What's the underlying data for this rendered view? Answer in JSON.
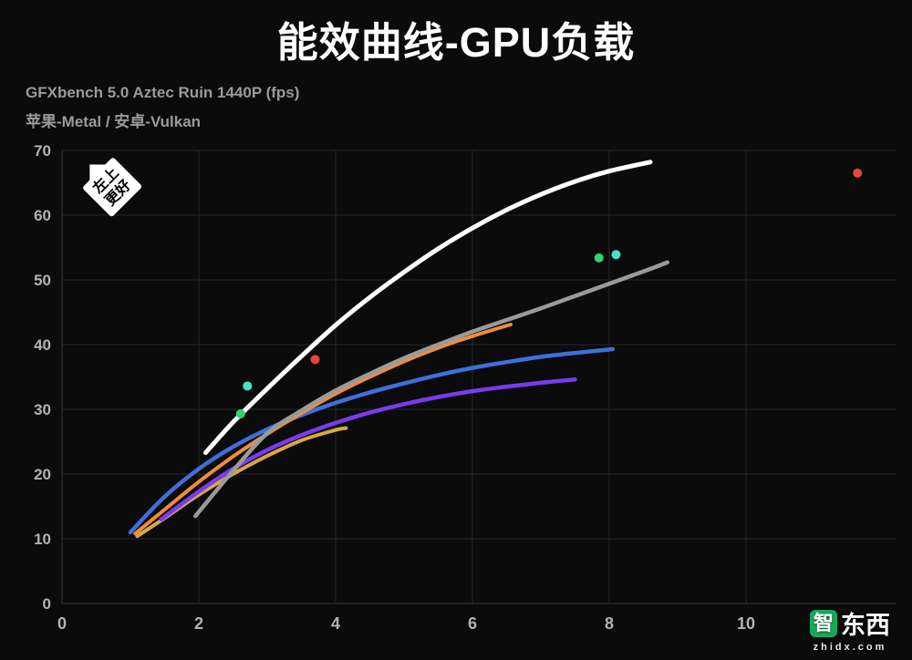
{
  "page": {
    "title": "能效曲线-GPU负载",
    "subtitle1": "GFXbench 5.0 Aztec Ruin 1440P (fps)",
    "subtitle2": "苹果-Metal / 安卓-Vulkan"
  },
  "annotation": {
    "line1": "左上",
    "line2": "更好"
  },
  "watermark": {
    "logo_char": "智",
    "logo_rest": "东西",
    "domain": "zhidx.com"
  },
  "chart_data": {
    "type": "line",
    "title": "能效曲线-GPU负载",
    "subtitle": "GFXbench 5.0 Aztec Ruin 1440P (fps) 苹果-Metal / 安卓-Vulkan",
    "xlim": [
      0,
      12.2
    ],
    "ylim": [
      0,
      70
    ],
    "x_ticks": [
      0,
      2,
      4,
      6,
      8,
      10
    ],
    "y_ticks": [
      0,
      10,
      20,
      30,
      40,
      50,
      60,
      70
    ],
    "grid": true,
    "legend": "none",
    "colors": {
      "background": "#0b0b0b",
      "grid": "#272727",
      "axis": "#3a3a3a",
      "tick_label": "#b3b3b3"
    },
    "series": [
      {
        "name": "yellow-curve",
        "color": "#d9a93c",
        "width": 4,
        "points": [
          [
            1.1,
            10.4
          ],
          [
            1.5,
            13.2
          ],
          [
            2,
            16.8
          ],
          [
            2.5,
            20.0
          ],
          [
            3,
            22.8
          ],
          [
            3.5,
            25.2
          ],
          [
            4,
            26.8
          ],
          [
            4.15,
            27.1
          ]
        ]
      },
      {
        "name": "purple-curve",
        "color": "#7a3bee",
        "width": 4.5,
        "points": [
          [
            1.45,
            13.0
          ],
          [
            2,
            17.3
          ],
          [
            2.5,
            20.8
          ],
          [
            3,
            23.7
          ],
          [
            3.5,
            26.0
          ],
          [
            4,
            27.9
          ],
          [
            4.5,
            29.5
          ],
          [
            5,
            30.8
          ],
          [
            5.5,
            31.9
          ],
          [
            6,
            32.8
          ],
          [
            6.5,
            33.5
          ],
          [
            7,
            34.1
          ],
          [
            7.5,
            34.6
          ]
        ]
      },
      {
        "name": "blue-curve",
        "color": "#3f6fdb",
        "width": 4.5,
        "points": [
          [
            1.0,
            11.0
          ],
          [
            1.5,
            16.5
          ],
          [
            2,
            20.8
          ],
          [
            2.5,
            24.2
          ],
          [
            3,
            26.9
          ],
          [
            3.5,
            29.1
          ],
          [
            4,
            31.0
          ],
          [
            4.5,
            32.6
          ],
          [
            5,
            34.0
          ],
          [
            5.5,
            35.3
          ],
          [
            6,
            36.4
          ],
          [
            6.5,
            37.3
          ],
          [
            7,
            38.1
          ],
          [
            7.5,
            38.7
          ],
          [
            8.05,
            39.3
          ]
        ]
      },
      {
        "name": "orange-curve",
        "color": "#f08c3a",
        "width": 4,
        "points": [
          [
            1.07,
            10.8
          ],
          [
            1.5,
            14.5
          ],
          [
            2,
            18.8
          ],
          [
            2.5,
            22.7
          ],
          [
            3,
            26.2
          ],
          [
            3.5,
            29.4
          ],
          [
            4,
            32.4
          ],
          [
            4.5,
            35.0
          ],
          [
            5,
            37.4
          ],
          [
            5.5,
            39.5
          ],
          [
            6,
            41.3
          ],
          [
            6.56,
            43.1
          ]
        ]
      },
      {
        "name": "gray-curve",
        "color": "#9a9a9a",
        "width": 4.5,
        "points": [
          [
            1.95,
            13.5
          ],
          [
            2.5,
            20.5
          ],
          [
            3,
            26.3
          ],
          [
            3.5,
            29.8
          ],
          [
            4,
            32.9
          ],
          [
            4.5,
            35.5
          ],
          [
            5,
            37.9
          ],
          [
            5.5,
            40.0
          ],
          [
            6,
            42.0
          ],
          [
            6.5,
            43.8
          ],
          [
            7,
            45.6
          ],
          [
            7.5,
            47.5
          ],
          [
            8,
            49.4
          ],
          [
            8.5,
            51.3
          ],
          [
            8.85,
            52.7
          ]
        ]
      },
      {
        "name": "white-curve",
        "color": "#ffffff",
        "width": 5,
        "points": [
          [
            2.1,
            23.3
          ],
          [
            2.5,
            28.0
          ],
          [
            3,
            33.2
          ],
          [
            3.5,
            38.2
          ],
          [
            4,
            43.0
          ],
          [
            4.5,
            47.3
          ],
          [
            5,
            51.2
          ],
          [
            5.5,
            54.8
          ],
          [
            6,
            58.0
          ],
          [
            6.5,
            60.8
          ],
          [
            7,
            63.2
          ],
          [
            7.5,
            65.2
          ],
          [
            8,
            66.8
          ],
          [
            8.6,
            68.2
          ]
        ]
      }
    ],
    "scatter": [
      {
        "name": "red-point",
        "color": "#e8443f",
        "r": 5,
        "points": [
          [
            3.7,
            37.7
          ],
          [
            11.63,
            66.5
          ]
        ]
      },
      {
        "name": "green-point",
        "color": "#2fd573",
        "r": 5,
        "points": [
          [
            2.61,
            29.3
          ],
          [
            7.85,
            53.4
          ]
        ]
      },
      {
        "name": "cyan-point",
        "color": "#46e3c3",
        "r": 5,
        "points": [
          [
            2.71,
            33.6
          ],
          [
            8.1,
            53.9
          ]
        ]
      }
    ]
  }
}
